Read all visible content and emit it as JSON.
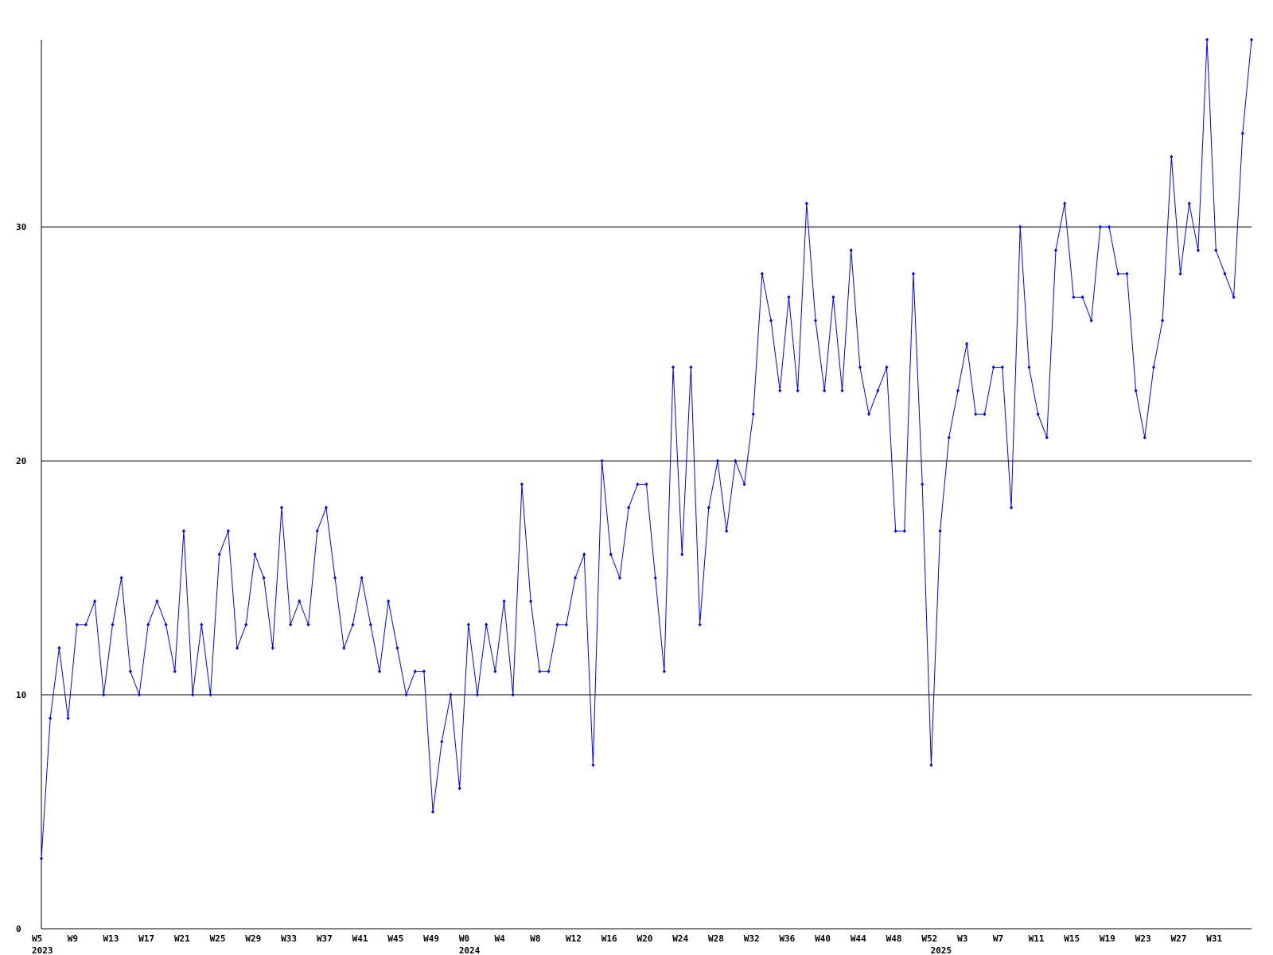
{
  "chart_data": {
    "type": "line",
    "categories": [
      "W5",
      null,
      null,
      null,
      "W9",
      null,
      null,
      null,
      "W13",
      null,
      null,
      null,
      "W17",
      null,
      null,
      null,
      "W21",
      null,
      null,
      null,
      "W25",
      null,
      null,
      null,
      "W29",
      null,
      null,
      null,
      "W33",
      null,
      null,
      null,
      "W37",
      null,
      null,
      null,
      "W41",
      null,
      null,
      null,
      "W45",
      null,
      null,
      null,
      "W49",
      null,
      null,
      null,
      "W0",
      null,
      null,
      null,
      "W4",
      null,
      null,
      null,
      "W8",
      null,
      null,
      null,
      "W12",
      null,
      null,
      null,
      "W16",
      null,
      null,
      null,
      "W20",
      null,
      null,
      null,
      "W24",
      null,
      null,
      null,
      "W28",
      null,
      null,
      null,
      "W32",
      null,
      null,
      null,
      "W36",
      null,
      null,
      null,
      "W40",
      null,
      null,
      null,
      "W44",
      null,
      null,
      null,
      "W48",
      null,
      null,
      null,
      "W52",
      null,
      null,
      null,
      "W3",
      null,
      null,
      null,
      "W7",
      null,
      null,
      null,
      "W11",
      null,
      null,
      null,
      "W15",
      null,
      null,
      null,
      "W19",
      null,
      null,
      null,
      "W23",
      null,
      null,
      null,
      "W27",
      null,
      null,
      null,
      "W31",
      null,
      null,
      null,
      null
    ],
    "category_years": [
      "2023",
      null,
      null,
      null,
      null,
      null,
      null,
      null,
      null,
      null,
      null,
      null,
      null,
      null,
      null,
      null,
      null,
      null,
      null,
      null,
      null,
      null,
      null,
      null,
      null,
      null,
      null,
      null,
      null,
      null,
      null,
      null,
      null,
      null,
      null,
      null,
      null,
      null,
      null,
      null,
      null,
      null,
      null,
      null,
      null,
      null,
      null,
      null,
      "2024",
      null,
      null,
      null,
      null,
      null,
      null,
      null,
      null,
      null,
      null,
      null,
      null,
      null,
      null,
      null,
      null,
      null,
      null,
      null,
      null,
      null,
      null,
      null,
      null,
      null,
      null,
      null,
      null,
      null,
      null,
      null,
      null,
      null,
      null,
      null,
      null,
      null,
      null,
      null,
      null,
      null,
      null,
      null,
      null,
      null,
      null,
      null,
      null,
      null,
      null,
      null,
      null,
      "2025",
      null,
      null,
      null,
      null,
      null,
      null,
      null,
      null,
      null,
      null,
      null,
      null,
      null,
      null,
      null,
      null,
      null,
      null,
      null,
      null,
      null,
      null,
      null,
      null,
      null,
      null,
      null,
      null,
      null,
      null,
      null,
      null,
      null,
      null,
      null
    ],
    "series": [
      {
        "color": "#0000ff",
        "values": [
          3,
          9,
          12,
          9,
          13,
          13,
          14,
          10,
          13,
          15,
          11,
          10,
          13,
          14,
          13,
          11,
          17,
          10,
          13,
          10,
          16,
          17,
          12,
          13,
          16,
          15,
          12,
          18,
          13,
          14,
          13,
          17,
          18,
          15,
          12,
          13,
          15,
          13,
          11,
          14,
          12,
          10,
          11,
          11,
          5,
          8,
          10,
          6,
          13,
          10,
          13,
          11,
          14,
          10,
          19,
          14,
          11,
          11,
          13,
          13,
          15,
          16,
          7,
          20,
          16,
          15,
          18,
          19,
          19,
          15,
          11,
          24,
          16,
          24,
          13,
          18,
          20,
          17,
          20,
          19,
          22,
          28,
          26,
          23,
          27,
          23,
          31,
          26,
          23,
          27,
          23,
          29,
          24,
          22,
          23,
          24,
          17,
          17,
          28,
          19,
          7,
          17,
          21,
          23,
          25,
          22,
          22,
          24,
          24,
          18,
          30,
          24,
          22,
          21,
          29,
          31,
          27,
          27,
          26,
          30,
          30,
          28,
          28,
          23,
          21,
          24,
          26,
          33,
          28,
          31,
          29,
          38,
          29,
          28,
          27,
          34,
          38
        ]
      }
    ],
    "ylim": [
      0,
      38
    ],
    "yticks": [
      0,
      10,
      20,
      30
    ],
    "grid": true
  }
}
